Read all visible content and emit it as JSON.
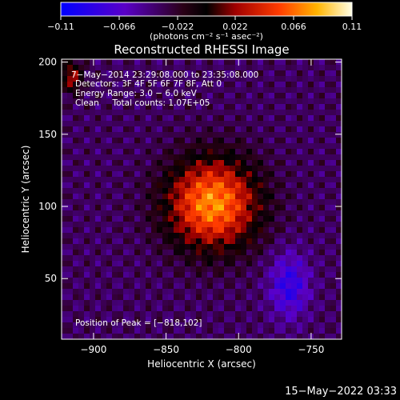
{
  "colorbar": {
    "ticks": [
      "−0.11",
      "−0.066",
      "−0.022",
      "0.022",
      "0.066",
      "0.11"
    ],
    "units": "(photons cm⁻² s⁻¹ asec⁻²)"
  },
  "chart_data": {
    "type": "heatmap",
    "title": "Reconstructed RHESSI Image",
    "xlabel": "Heliocentric X (arcsec)",
    "ylabel": "Heliocentric Y (arcsec)",
    "xlim": [
      -922,
      -729
    ],
    "ylim": [
      8,
      202
    ],
    "xticks": [
      -900,
      -850,
      -800,
      -750
    ],
    "xtick_labels": [
      "−900",
      "−850",
      "−800",
      "−750"
    ],
    "yticks": [
      50,
      100,
      150,
      200
    ],
    "ytick_labels": [
      "50",
      "100",
      "150",
      "200"
    ],
    "colorbar_range": [
      -0.11,
      0.11
    ],
    "peak_position": [
      -818,
      102
    ],
    "annotations": [
      "7−May−2014 23:29:08.000 to 23:35:08.000",
      "Detectors: 3F 4F 5F 6F 7F 8F, Att 0",
      "Energy Range: 3.0 − 6.0 keV",
      "Clean     Total counts: 1.07E+05"
    ],
    "peak_label": "Position of Peak = [−818,102]"
  },
  "footer": {
    "timestamp": "15−May−2022 03:33"
  }
}
